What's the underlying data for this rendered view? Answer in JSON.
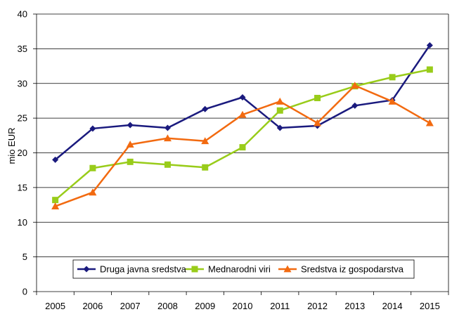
{
  "chart_data": {
    "type": "line",
    "title": "",
    "xlabel": "",
    "ylabel": "mio EUR",
    "categories": [
      "2005",
      "2006",
      "2007",
      "2008",
      "2009",
      "2010",
      "2011",
      "2012",
      "2013",
      "2014",
      "2015"
    ],
    "ylim": [
      0,
      40
    ],
    "yticks": [
      0,
      5,
      10,
      15,
      20,
      25,
      30,
      35,
      40
    ],
    "grid": "horizontal",
    "legend_position": "bottom-inside",
    "series": [
      {
        "name": "Druga javna sredstva",
        "color": "#1a1a7e",
        "marker": "diamond",
        "values": [
          19.0,
          23.5,
          24.0,
          23.6,
          26.3,
          28.0,
          23.6,
          23.9,
          26.8,
          27.6,
          35.5
        ]
      },
      {
        "name": "Mednarodni viri",
        "color": "#99cc1a",
        "marker": "square",
        "values": [
          13.2,
          17.8,
          18.7,
          18.3,
          17.9,
          20.8,
          26.1,
          27.9,
          29.6,
          30.9,
          32.0
        ]
      },
      {
        "name": "Sredstva iz gospodarstva",
        "color": "#f26a10",
        "marker": "triangle",
        "values": [
          12.3,
          14.3,
          21.2,
          22.1,
          21.7,
          25.5,
          27.4,
          24.3,
          29.7,
          27.4,
          24.3
        ]
      }
    ]
  }
}
